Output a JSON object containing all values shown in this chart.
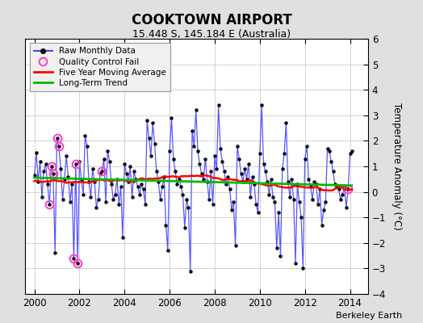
{
  "title": "COOKTOWN AIRPORT",
  "subtitle": "15.448 S, 145.184 E (Australia)",
  "credit": "Berkeley Earth",
  "ylabel": "Temperature Anomaly (°C)",
  "xlim": [
    1999.6,
    2014.8
  ],
  "ylim": [
    -4,
    6
  ],
  "yticks": [
    -4,
    -3,
    -2,
    -1,
    0,
    1,
    2,
    3,
    4,
    5,
    6
  ],
  "xticks": [
    2000,
    2002,
    2004,
    2006,
    2008,
    2010,
    2012,
    2014
  ],
  "bg_color": "#e0e0e0",
  "plot_bg_color": "#ffffff",
  "line_color": "#4444ff",
  "marker_color": "#000000",
  "ma_color": "#ff0000",
  "trend_color": "#00bb00",
  "qc_color": "#ff44cc",
  "raw_data": [
    0.65,
    1.55,
    0.4,
    1.2,
    -0.2,
    0.8,
    1.1,
    0.3,
    -0.5,
    1.0,
    0.7,
    -2.4,
    2.1,
    1.8,
    0.9,
    -0.3,
    0.5,
    1.4,
    0.6,
    -0.4,
    0.3,
    -2.6,
    1.1,
    -2.8,
    1.2,
    0.5,
    -0.1,
    2.2,
    1.8,
    0.4,
    -0.2,
    0.9,
    0.4,
    -0.6,
    -0.3,
    0.7,
    0.8,
    1.3,
    -0.4,
    1.6,
    1.2,
    0.3,
    -0.3,
    -0.1,
    0.5,
    -0.5,
    0.2,
    -1.8,
    1.1,
    0.7,
    0.4,
    1.0,
    -0.2,
    0.8,
    0.5,
    0.2,
    -0.1,
    0.3,
    0.1,
    -0.5,
    2.8,
    2.1,
    1.4,
    2.7,
    1.9,
    0.8,
    0.4,
    -0.3,
    0.2,
    0.6,
    -1.3,
    -2.3,
    1.6,
    2.9,
    1.3,
    0.8,
    0.3,
    0.5,
    0.2,
    -0.1,
    -1.4,
    -0.3,
    -0.6,
    -3.1,
    2.4,
    1.8,
    3.2,
    1.6,
    1.1,
    0.7,
    0.5,
    1.3,
    0.4,
    -0.3,
    0.8,
    -0.5,
    1.4,
    0.9,
    3.4,
    1.7,
    1.2,
    0.8,
    0.3,
    0.6,
    0.1,
    -0.7,
    -0.4,
    -2.1,
    1.8,
    1.3,
    0.7,
    0.4,
    0.9,
    0.5,
    1.1,
    -0.2,
    0.6,
    0.3,
    -0.5,
    -0.8,
    1.5,
    3.4,
    1.1,
    0.8,
    0.4,
    -0.1,
    0.5,
    -0.2,
    -0.4,
    -2.2,
    -0.8,
    -2.5,
    0.9,
    1.5,
    2.7,
    0.4,
    -0.2,
    0.5,
    -0.3,
    -2.8,
    0.3,
    -0.4,
    -1.0,
    -3.0,
    1.3,
    1.8,
    0.5,
    0.2,
    -0.3,
    0.4,
    0.3,
    -0.5,
    0.1,
    -1.3,
    -0.7,
    -0.4,
    1.7,
    1.6,
    1.2,
    0.8,
    0.3,
    0.2,
    0.1,
    -0.3,
    -0.1,
    0.2,
    -0.6,
    0.1,
    1.5,
    1.6
  ],
  "qc_fail_indices": [
    8,
    9,
    10,
    12,
    13,
    21,
    22,
    23,
    36,
    167
  ],
  "start_year": 2000.0,
  "months_per_year": 12
}
